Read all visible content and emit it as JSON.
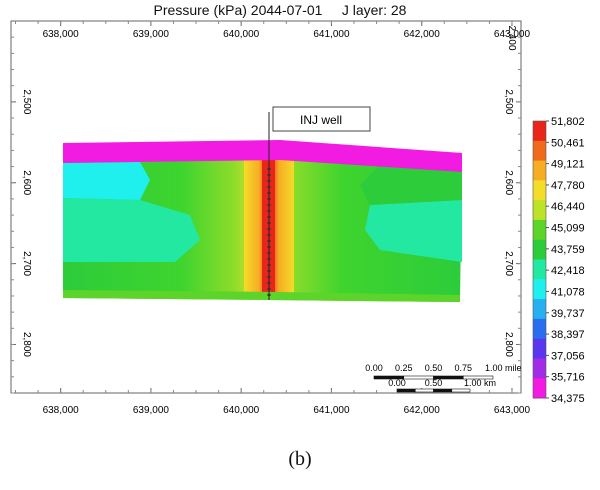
{
  "chart_data": {
    "type": "heatmap",
    "title": "Pressure (kPa) 2044-07-01     J layer: 28",
    "x_ticks": [
      "638,000",
      "639,000",
      "640,000",
      "641,000",
      "642,000",
      "643,000"
    ],
    "x_tick_values": [
      638000,
      639000,
      640000,
      641000,
      642000,
      643000
    ],
    "y_ticks_left": [
      "2,500",
      "2,600",
      "2,700",
      "2,800"
    ],
    "y_ticks_right": [
      "2,500",
      "2,600",
      "2,700",
      "2,800"
    ],
    "y_tick_values": [
      2500,
      2600,
      2700,
      2800
    ],
    "top_right_tick": "2,400",
    "xlim": [
      637450,
      643100
    ],
    "ylim": [
      2400,
      2860
    ],
    "colorbar": {
      "labels": [
        "51,802",
        "50,461",
        "49,121",
        "47,780",
        "46,440",
        "45,099",
        "43,759",
        "42,418",
        "41,078",
        "39,737",
        "38,397",
        "37,056",
        "35,716",
        "34,375"
      ],
      "colors": [
        "#e8241b",
        "#ef6a1d",
        "#f6ad24",
        "#f4dd28",
        "#bde22a",
        "#5cd42a",
        "#2ccc3b",
        "#23e8a1",
        "#1ff0ee",
        "#27b0f0",
        "#2a6ef0",
        "#5a36ee",
        "#a22ce6",
        "#f21be2"
      ]
    },
    "annotation": "INJ well",
    "annotation_x": 640350,
    "scale_bar": {
      "mile_labels": [
        "0.00",
        "0.25",
        "0.50",
        "0.75",
        "1.00 mile"
      ],
      "km_labels": [
        "0.00",
        "0.50",
        "1.00 km"
      ]
    }
  },
  "caption": "(b)"
}
